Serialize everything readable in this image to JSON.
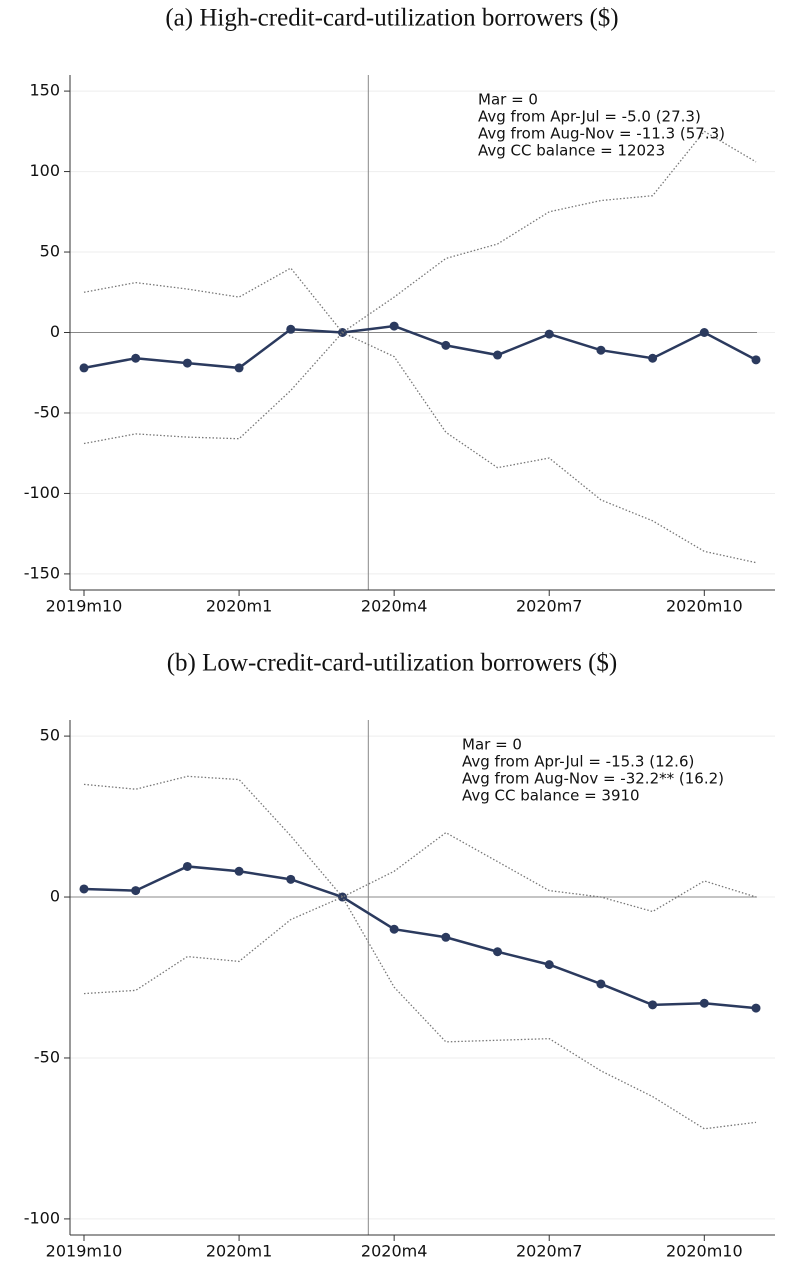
{
  "chart_data": [
    {
      "type": "line",
      "title": "(a) High-credit-card-utilization borrowers ($)",
      "categories": [
        "2019m10",
        null,
        null,
        "2020m1",
        null,
        null,
        "2020m4",
        null,
        null,
        "2020m7",
        null,
        null,
        "2020m10",
        null
      ],
      "series": [
        {
          "color": "#2b3a5e",
          "style": "solid",
          "markers": true,
          "values": [
            -22,
            -16,
            -19,
            -22,
            2,
            0,
            4,
            -8,
            -14,
            -1,
            -11,
            -16,
            0,
            -17
          ]
        },
        {
          "color": "#777777",
          "style": "dotted",
          "markers": false,
          "values": [
            25,
            31,
            27,
            22,
            40,
            0,
            22,
            46,
            55,
            75,
            82,
            85,
            125,
            106
          ]
        },
        {
          "color": "#777777",
          "style": "dotted",
          "markers": false,
          "values": [
            -69,
            -63,
            -65,
            -66,
            -36,
            0,
            -15,
            -62,
            -84,
            -78,
            -104,
            -117,
            -136,
            -143
          ]
        }
      ],
      "ylim": [
        -160,
        160
      ],
      "yticks": [
        -150,
        -100,
        -50,
        0,
        50,
        100,
        150
      ],
      "grid": true,
      "annotations": [
        "Mar = 0",
        "Avg from Apr-Jul = -5.0 (27.3)",
        "Avg from Aug-Nov = -11.3 (57.3)",
        "Avg CC balance = 12023"
      ]
    },
    {
      "type": "line",
      "title": "(b) Low-credit-card-utilization borrowers ($)",
      "categories": [
        "2019m10",
        null,
        null,
        "2020m1",
        null,
        null,
        "2020m4",
        null,
        null,
        "2020m7",
        null,
        null,
        "2020m10",
        null
      ],
      "series": [
        {
          "color": "#2b3a5e",
          "style": "solid",
          "markers": true,
          "values": [
            2.5,
            2,
            9.5,
            8,
            5.5,
            0,
            -10,
            -12.5,
            -17,
            -21,
            -27,
            -33.5,
            -33,
            -34.5
          ]
        },
        {
          "color": "#777777",
          "style": "dotted",
          "markers": false,
          "values": [
            35,
            33.5,
            37.5,
            36.5,
            19,
            0,
            8,
            20,
            11,
            2,
            0,
            -4.5,
            5,
            0
          ]
        },
        {
          "color": "#777777",
          "style": "dotted",
          "markers": false,
          "values": [
            -30,
            -29,
            -18.5,
            -20,
            -7,
            0,
            -28,
            -45,
            -44.5,
            -44,
            -54,
            -62,
            -72,
            -70
          ]
        }
      ],
      "ylim": [
        -105,
        55
      ],
      "yticks": [
        -100,
        -50,
        0,
        50
      ],
      "grid": true,
      "annotations": [
        "Mar = 0",
        "Avg from Apr-Jul = -15.3 (12.6)",
        "Avg from Aug-Nov = -32.2** (16.2)",
        "Avg CC balance = 3910"
      ]
    }
  ]
}
